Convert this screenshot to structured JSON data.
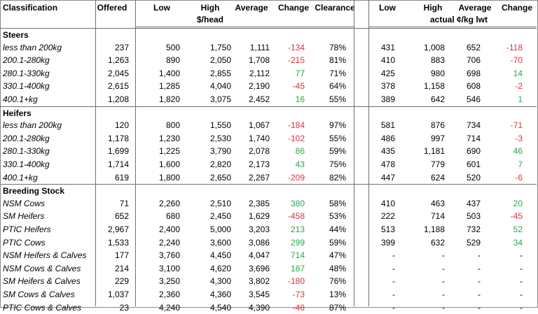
{
  "header": {
    "classification": "Classification",
    "offered": "Offered",
    "low": "Low",
    "high": "High",
    "average": "Average",
    "change": "Change",
    "clearance": "Clearance",
    "low2": "Low",
    "high2": "High",
    "average2": "Average",
    "change2": "Change",
    "unit_head": "$/head",
    "unit_kg": "actual ¢/kg lwt"
  },
  "colors": {
    "negative": "#e0303a",
    "positive": "#24a84a"
  },
  "sections": [
    {
      "title": "Steers",
      "rows": [
        {
          "label": "less than 200kg",
          "offered": "237",
          "low": "500",
          "high": "1,750",
          "average": "1,111",
          "change": "-134",
          "clearance": "78%",
          "low2": "431",
          "high2": "1,008",
          "average2": "652",
          "change2": "-118"
        },
        {
          "label": "200.1-280kg",
          "offered": "1,263",
          "low": "890",
          "high": "2,050",
          "average": "1,708",
          "change": "-215",
          "clearance": "81%",
          "low2": "410",
          "high2": "883",
          "average2": "706",
          "change2": "-70"
        },
        {
          "label": "280.1-330kg",
          "offered": "2,045",
          "low": "1,400",
          "high": "2,855",
          "average": "2,112",
          "change": "77",
          "clearance": "71%",
          "low2": "425",
          "high2": "980",
          "average2": "698",
          "change2": "14"
        },
        {
          "label": "330.1-400kg",
          "offered": "2,615",
          "low": "1,285",
          "high": "4,040",
          "average": "2,190",
          "change": "-45",
          "clearance": "64%",
          "low2": "378",
          "high2": "1,158",
          "average2": "608",
          "change2": "-2"
        },
        {
          "label": "400.1+kg",
          "offered": "1,208",
          "low": "1,820",
          "high": "3,075",
          "average": "2,452",
          "change": "16",
          "clearance": "55%",
          "low2": "389",
          "high2": "642",
          "average2": "546",
          "change2": "1"
        }
      ]
    },
    {
      "title": "Heifers",
      "rows": [
        {
          "label": "less than 200kg",
          "offered": "120",
          "low": "800",
          "high": "1,550",
          "average": "1,067",
          "change": "-184",
          "clearance": "97%",
          "low2": "581",
          "high2": "876",
          "average2": "734",
          "change2": "-71"
        },
        {
          "label": "200.1-280kg",
          "offered": "1,178",
          "low": "1,230",
          "high": "2,530",
          "average": "1,740",
          "change": "-102",
          "clearance": "55%",
          "low2": "486",
          "high2": "997",
          "average2": "714",
          "change2": "-3"
        },
        {
          "label": "280.1-330kg",
          "offered": "1,699",
          "low": "1,225",
          "high": "3,790",
          "average": "2,078",
          "change": "86",
          "clearance": "59%",
          "low2": "435",
          "high2": "1,181",
          "average2": "690",
          "change2": "46"
        },
        {
          "label": "330.1-400kg",
          "offered": "1,714",
          "low": "1,600",
          "high": "2,820",
          "average": "2,173",
          "change": "43",
          "clearance": "75%",
          "low2": "478",
          "high2": "779",
          "average2": "601",
          "change2": "7"
        },
        {
          "label": "400.1+kg",
          "offered": "619",
          "low": "1,800",
          "high": "2,650",
          "average": "2,267",
          "change": "-209",
          "clearance": "82%",
          "low2": "447",
          "high2": "624",
          "average2": "520",
          "change2": "-6"
        }
      ]
    },
    {
      "title": "Breeding Stock",
      "rows": [
        {
          "label": "NSM Cows",
          "offered": "71",
          "low": "2,260",
          "high": "2,510",
          "average": "2,385",
          "change": "380",
          "clearance": "58%",
          "low2": "410",
          "high2": "463",
          "average2": "437",
          "change2": "20"
        },
        {
          "label": "SM Heifers",
          "offered": "652",
          "low": "680",
          "high": "2,450",
          "average": "1,629",
          "change": "-458",
          "clearance": "53%",
          "low2": "222",
          "high2": "714",
          "average2": "503",
          "change2": "-45"
        },
        {
          "label": "PTIC Heifers",
          "offered": "2,967",
          "low": "2,400",
          "high": "5,000",
          "average": "3,203",
          "change": "213",
          "clearance": "44%",
          "low2": "513",
          "high2": "1,188",
          "average2": "732",
          "change2": "52"
        },
        {
          "label": "PTIC Cows",
          "offered": "1,533",
          "low": "2,240",
          "high": "3,600",
          "average": "3,086",
          "change": "299",
          "clearance": "59%",
          "low2": "399",
          "high2": "632",
          "average2": "529",
          "change2": "34"
        },
        {
          "label": "NSM Heifers & Calves",
          "offered": "177",
          "low": "3,760",
          "high": "4,450",
          "average": "4,047",
          "change": "714",
          "clearance": "47%",
          "low2": "-",
          "high2": "-",
          "average2": "-",
          "change2": "-"
        },
        {
          "label": "NSM Cows & Calves",
          "offered": "214",
          "low": "3,100",
          "high": "4,620",
          "average": "3,696",
          "change": "187",
          "clearance": "48%",
          "low2": "-",
          "high2": "-",
          "average2": "-",
          "change2": "-"
        },
        {
          "label": "SM Heifers & Calves",
          "offered": "229",
          "low": "3,250",
          "high": "4,300",
          "average": "3,802",
          "change": "-180",
          "clearance": "76%",
          "low2": "-",
          "high2": "-",
          "average2": "-",
          "change2": "-"
        },
        {
          "label": "SM Cows & Calves",
          "offered": "1,037",
          "low": "2,360",
          "high": "4,360",
          "average": "3,545",
          "change": "-73",
          "clearance": "13%",
          "low2": "-",
          "high2": "-",
          "average2": "-",
          "change2": "-"
        },
        {
          "label": "PTIC Cows & Calves",
          "offered": "23",
          "low": "4,240",
          "high": "4,540",
          "average": "4,390",
          "change": "-48",
          "clearance": "87%",
          "low2": "-",
          "high2": "-",
          "average2": "-",
          "change2": "-"
        }
      ]
    }
  ]
}
